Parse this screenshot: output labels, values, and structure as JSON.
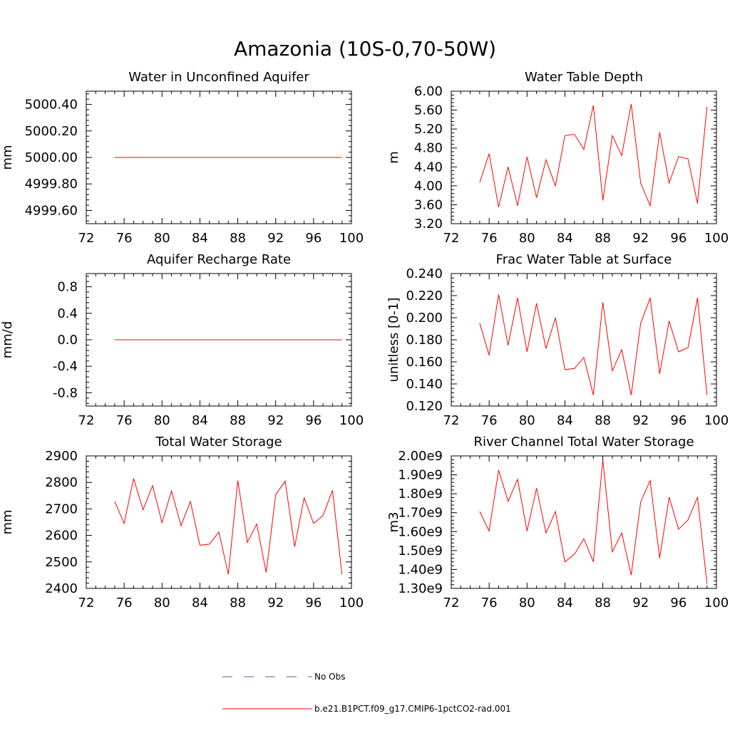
{
  "main_title": "Amazonia (10S-0,70-50W)",
  "legend": [
    {
      "label": "No Obs",
      "color": "#5a5aa8",
      "style": "dashed"
    },
    {
      "label": "b.e21.B1PCT.f09_g17.CMIP6-1pctCO2-rad.001",
      "color": "#ff0000",
      "style": "solid"
    }
  ],
  "chart_data": [
    {
      "type": "line",
      "title": "Water in Unconfined Aquifer",
      "ylabel": "mm",
      "xlim": [
        72,
        100
      ],
      "ylim": [
        4999.5,
        5000.5
      ],
      "xticks": [
        72,
        76,
        80,
        84,
        88,
        92,
        96,
        100
      ],
      "xtick_labels": [
        "72",
        "76",
        "80",
        "84",
        "88",
        "92",
        "96",
        "100"
      ],
      "yticks": [
        4999.6,
        4999.8,
        5000.0,
        5000.2,
        5000.4
      ],
      "ytick_labels": [
        "4999.60",
        "4999.80",
        "5000.00",
        "5000.20",
        "5000.40"
      ],
      "x": [
        75,
        99
      ],
      "series": [
        {
          "color": "#ff0000",
          "values": [
            5000.0,
            5000.0
          ]
        }
      ]
    },
    {
      "type": "line",
      "title": "Water Table Depth",
      "ylabel": "m",
      "xlim": [
        72,
        100
      ],
      "ylim": [
        3.2,
        6.0
      ],
      "xticks": [
        72,
        76,
        80,
        84,
        88,
        92,
        96,
        100
      ],
      "xtick_labels": [
        "72",
        "76",
        "80",
        "84",
        "88",
        "92",
        "96",
        "100"
      ],
      "yticks": [
        3.2,
        3.6,
        4.0,
        4.4,
        4.8,
        5.2,
        5.6,
        6.0
      ],
      "ytick_labels": [
        "3.20",
        "3.60",
        "4.00",
        "4.40",
        "4.80",
        "5.20",
        "5.60",
        "6.00"
      ],
      "x": [
        75,
        76,
        77,
        78,
        79,
        80,
        81,
        82,
        83,
        84,
        85,
        86,
        87,
        88,
        89,
        90,
        91,
        92,
        93,
        94,
        95,
        96,
        97,
        98,
        99
      ],
      "series": [
        {
          "color": "#ff0000",
          "values": [
            4.07,
            4.68,
            3.55,
            4.4,
            3.58,
            4.61,
            3.75,
            4.55,
            4.0,
            5.06,
            5.09,
            4.77,
            5.7,
            3.69,
            5.06,
            4.64,
            5.73,
            4.06,
            3.58,
            5.13,
            4.06,
            4.62,
            4.57,
            3.63,
            5.67
          ]
        }
      ]
    },
    {
      "type": "line",
      "title": "Aquifer Recharge Rate",
      "ylabel": "mm/d",
      "xlim": [
        72,
        100
      ],
      "ylim": [
        -1.0,
        1.0
      ],
      "xticks": [
        72,
        76,
        80,
        84,
        88,
        92,
        96,
        100
      ],
      "xtick_labels": [
        "72",
        "76",
        "80",
        "84",
        "88",
        "92",
        "96",
        "100"
      ],
      "yticks": [
        -0.8,
        -0.4,
        0.0,
        0.4,
        0.8
      ],
      "ytick_labels": [
        "-0.8",
        "-0.4",
        "0.0",
        "0.4",
        "0.8"
      ],
      "x": [
        75,
        99
      ],
      "series": [
        {
          "color": "#ff0000",
          "values": [
            0.0,
            0.0
          ]
        }
      ]
    },
    {
      "type": "line",
      "title": "Frac Water Table at Surface",
      "ylabel": "unitless [0-1]",
      "xlim": [
        72,
        100
      ],
      "ylim": [
        0.12,
        0.24
      ],
      "xticks": [
        72,
        76,
        80,
        84,
        88,
        92,
        96,
        100
      ],
      "xtick_labels": [
        "72",
        "76",
        "80",
        "84",
        "88",
        "92",
        "96",
        "100"
      ],
      "yticks": [
        0.12,
        0.14,
        0.16,
        0.18,
        0.2,
        0.22,
        0.24
      ],
      "ytick_labels": [
        "0.120",
        "0.140",
        "0.160",
        "0.180",
        "0.200",
        "0.220",
        "0.240"
      ],
      "x": [
        75,
        76,
        77,
        78,
        79,
        80,
        81,
        82,
        83,
        84,
        85,
        86,
        87,
        88,
        89,
        90,
        91,
        92,
        93,
        94,
        95,
        96,
        97,
        98,
        99
      ],
      "series": [
        {
          "color": "#ff0000",
          "values": [
            0.195,
            0.166,
            0.221,
            0.175,
            0.218,
            0.169,
            0.213,
            0.172,
            0.2,
            0.153,
            0.154,
            0.164,
            0.13,
            0.214,
            0.152,
            0.171,
            0.13,
            0.195,
            0.218,
            0.149,
            0.197,
            0.169,
            0.173,
            0.218,
            0.13
          ]
        }
      ]
    },
    {
      "type": "line",
      "title": "Total Water Storage",
      "ylabel": "mm",
      "xlim": [
        72,
        100
      ],
      "ylim": [
        2400,
        2900
      ],
      "xticks": [
        72,
        76,
        80,
        84,
        88,
        92,
        96,
        100
      ],
      "xtick_labels": [
        "72",
        "76",
        "80",
        "84",
        "88",
        "92",
        "96",
        "100"
      ],
      "yticks": [
        2400,
        2500,
        2600,
        2700,
        2800,
        2900
      ],
      "ytick_labels": [
        "2400",
        "2500",
        "2600",
        "2700",
        "2800",
        "2900"
      ],
      "x": [
        75,
        76,
        77,
        78,
        79,
        80,
        81,
        82,
        83,
        84,
        85,
        86,
        87,
        88,
        89,
        90,
        91,
        92,
        93,
        94,
        95,
        96,
        97,
        98,
        99
      ],
      "series": [
        {
          "color": "#ff0000",
          "values": [
            2728,
            2645,
            2815,
            2697,
            2788,
            2648,
            2768,
            2637,
            2728,
            2563,
            2567,
            2613,
            2453,
            2807,
            2573,
            2643,
            2460,
            2753,
            2805,
            2557,
            2742,
            2645,
            2675,
            2770,
            2453
          ]
        }
      ]
    },
    {
      "type": "line",
      "title": "River Channel Total Water Storage",
      "ylabel": "m3",
      "xlim": [
        72,
        100
      ],
      "ylim": [
        1300000000,
        2000000000
      ],
      "xticks": [
        72,
        76,
        80,
        84,
        88,
        92,
        96,
        100
      ],
      "xtick_labels": [
        "72",
        "76",
        "80",
        "84",
        "88",
        "92",
        "96",
        "100"
      ],
      "yticks": [
        1300000000,
        1400000000,
        1500000000,
        1600000000,
        1700000000,
        1800000000,
        1900000000,
        2000000000
      ],
      "ytick_labels": [
        "1.30e9",
        "1.40e9",
        "1.50e9",
        "1.60e9",
        "1.70e9",
        "1.80e9",
        "1.90e9",
        "2.00e9"
      ],
      "x": [
        75,
        76,
        77,
        78,
        79,
        80,
        81,
        82,
        83,
        84,
        85,
        86,
        87,
        88,
        89,
        90,
        91,
        92,
        93,
        94,
        95,
        96,
        97,
        98,
        99
      ],
      "series": [
        {
          "color": "#ff0000",
          "values": [
            1706000000,
            1603000000,
            1925000000,
            1760000000,
            1876000000,
            1603000000,
            1830000000,
            1593000000,
            1706000000,
            1440000000,
            1480000000,
            1562000000,
            1440000000,
            1980000000,
            1493000000,
            1593000000,
            1370000000,
            1757000000,
            1870000000,
            1460000000,
            1782000000,
            1613000000,
            1662000000,
            1782000000,
            1325000000
          ]
        }
      ]
    }
  ]
}
